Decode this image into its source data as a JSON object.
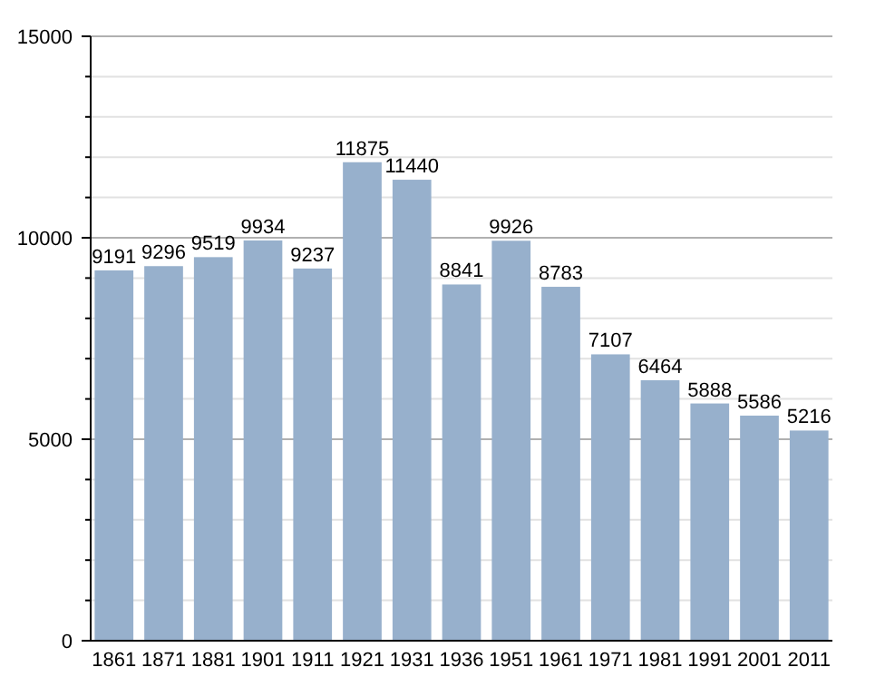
{
  "chart_data": {
    "type": "bar",
    "categories": [
      "1861",
      "1871",
      "1881",
      "1901",
      "1911",
      "1921",
      "1931",
      "1936",
      "1951",
      "1961",
      "1971",
      "1981",
      "1991",
      "2001",
      "2011"
    ],
    "values": [
      9191,
      9296,
      9519,
      9934,
      9237,
      11875,
      11440,
      8841,
      9926,
      8783,
      7107,
      6464,
      5888,
      5586,
      5216
    ],
    "color": "#97b0cc",
    "ylim": [
      0,
      15000
    ],
    "yticks": [
      0,
      {
        "value": 1000,
        "label": null
      },
      {
        "value": 2000,
        "label": null
      },
      {
        "value": 3000,
        "label": null
      },
      {
        "value": 4000,
        "label": null
      },
      5000,
      {
        "value": 6000,
        "label": null
      },
      {
        "value": 7000,
        "label": null
      },
      {
        "value": 8000,
        "label": null
      },
      {
        "value": 9000,
        "label": null
      },
      10000,
      {
        "value": 11000,
        "label": null
      },
      {
        "value": 12000,
        "label": null
      },
      {
        "value": 13000,
        "label": null
      },
      {
        "value": 14000,
        "label": null
      },
      15000
    ],
    "grid": "y",
    "data_labels": true
  }
}
